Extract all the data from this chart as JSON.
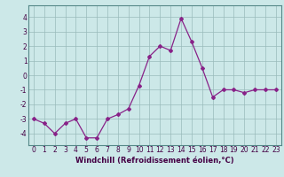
{
  "x": [
    0,
    1,
    2,
    3,
    4,
    5,
    6,
    7,
    8,
    9,
    10,
    11,
    12,
    13,
    14,
    15,
    16,
    17,
    18,
    19,
    20,
    21,
    22,
    23
  ],
  "y": [
    -3.0,
    -3.3,
    -4.0,
    -3.3,
    -3.0,
    -4.3,
    -4.3,
    -3.0,
    -2.7,
    -2.3,
    -0.7,
    1.3,
    2.0,
    1.7,
    3.9,
    2.3,
    0.5,
    -1.5,
    -1.0,
    -1.0,
    -1.2,
    -1.0,
    -1.0,
    -1.0
  ],
  "line_color": "#882288",
  "marker": "D",
  "marker_size": 2.0,
  "line_width": 0.9,
  "bg_color": "#cce8e8",
  "grid_color": "#99bbbb",
  "axis_bg": "#cce8e8",
  "xlabel": "Windchill (Refroidissement éolien,°C)",
  "xlabel_fontsize": 6.0,
  "tick_fontsize": 5.5,
  "ylabel_ticks": [
    -4,
    -3,
    -2,
    -1,
    0,
    1,
    2,
    3,
    4
  ],
  "ylim": [
    -4.8,
    4.8
  ],
  "xlim": [
    -0.5,
    23.5
  ],
  "border_color": "#558888"
}
